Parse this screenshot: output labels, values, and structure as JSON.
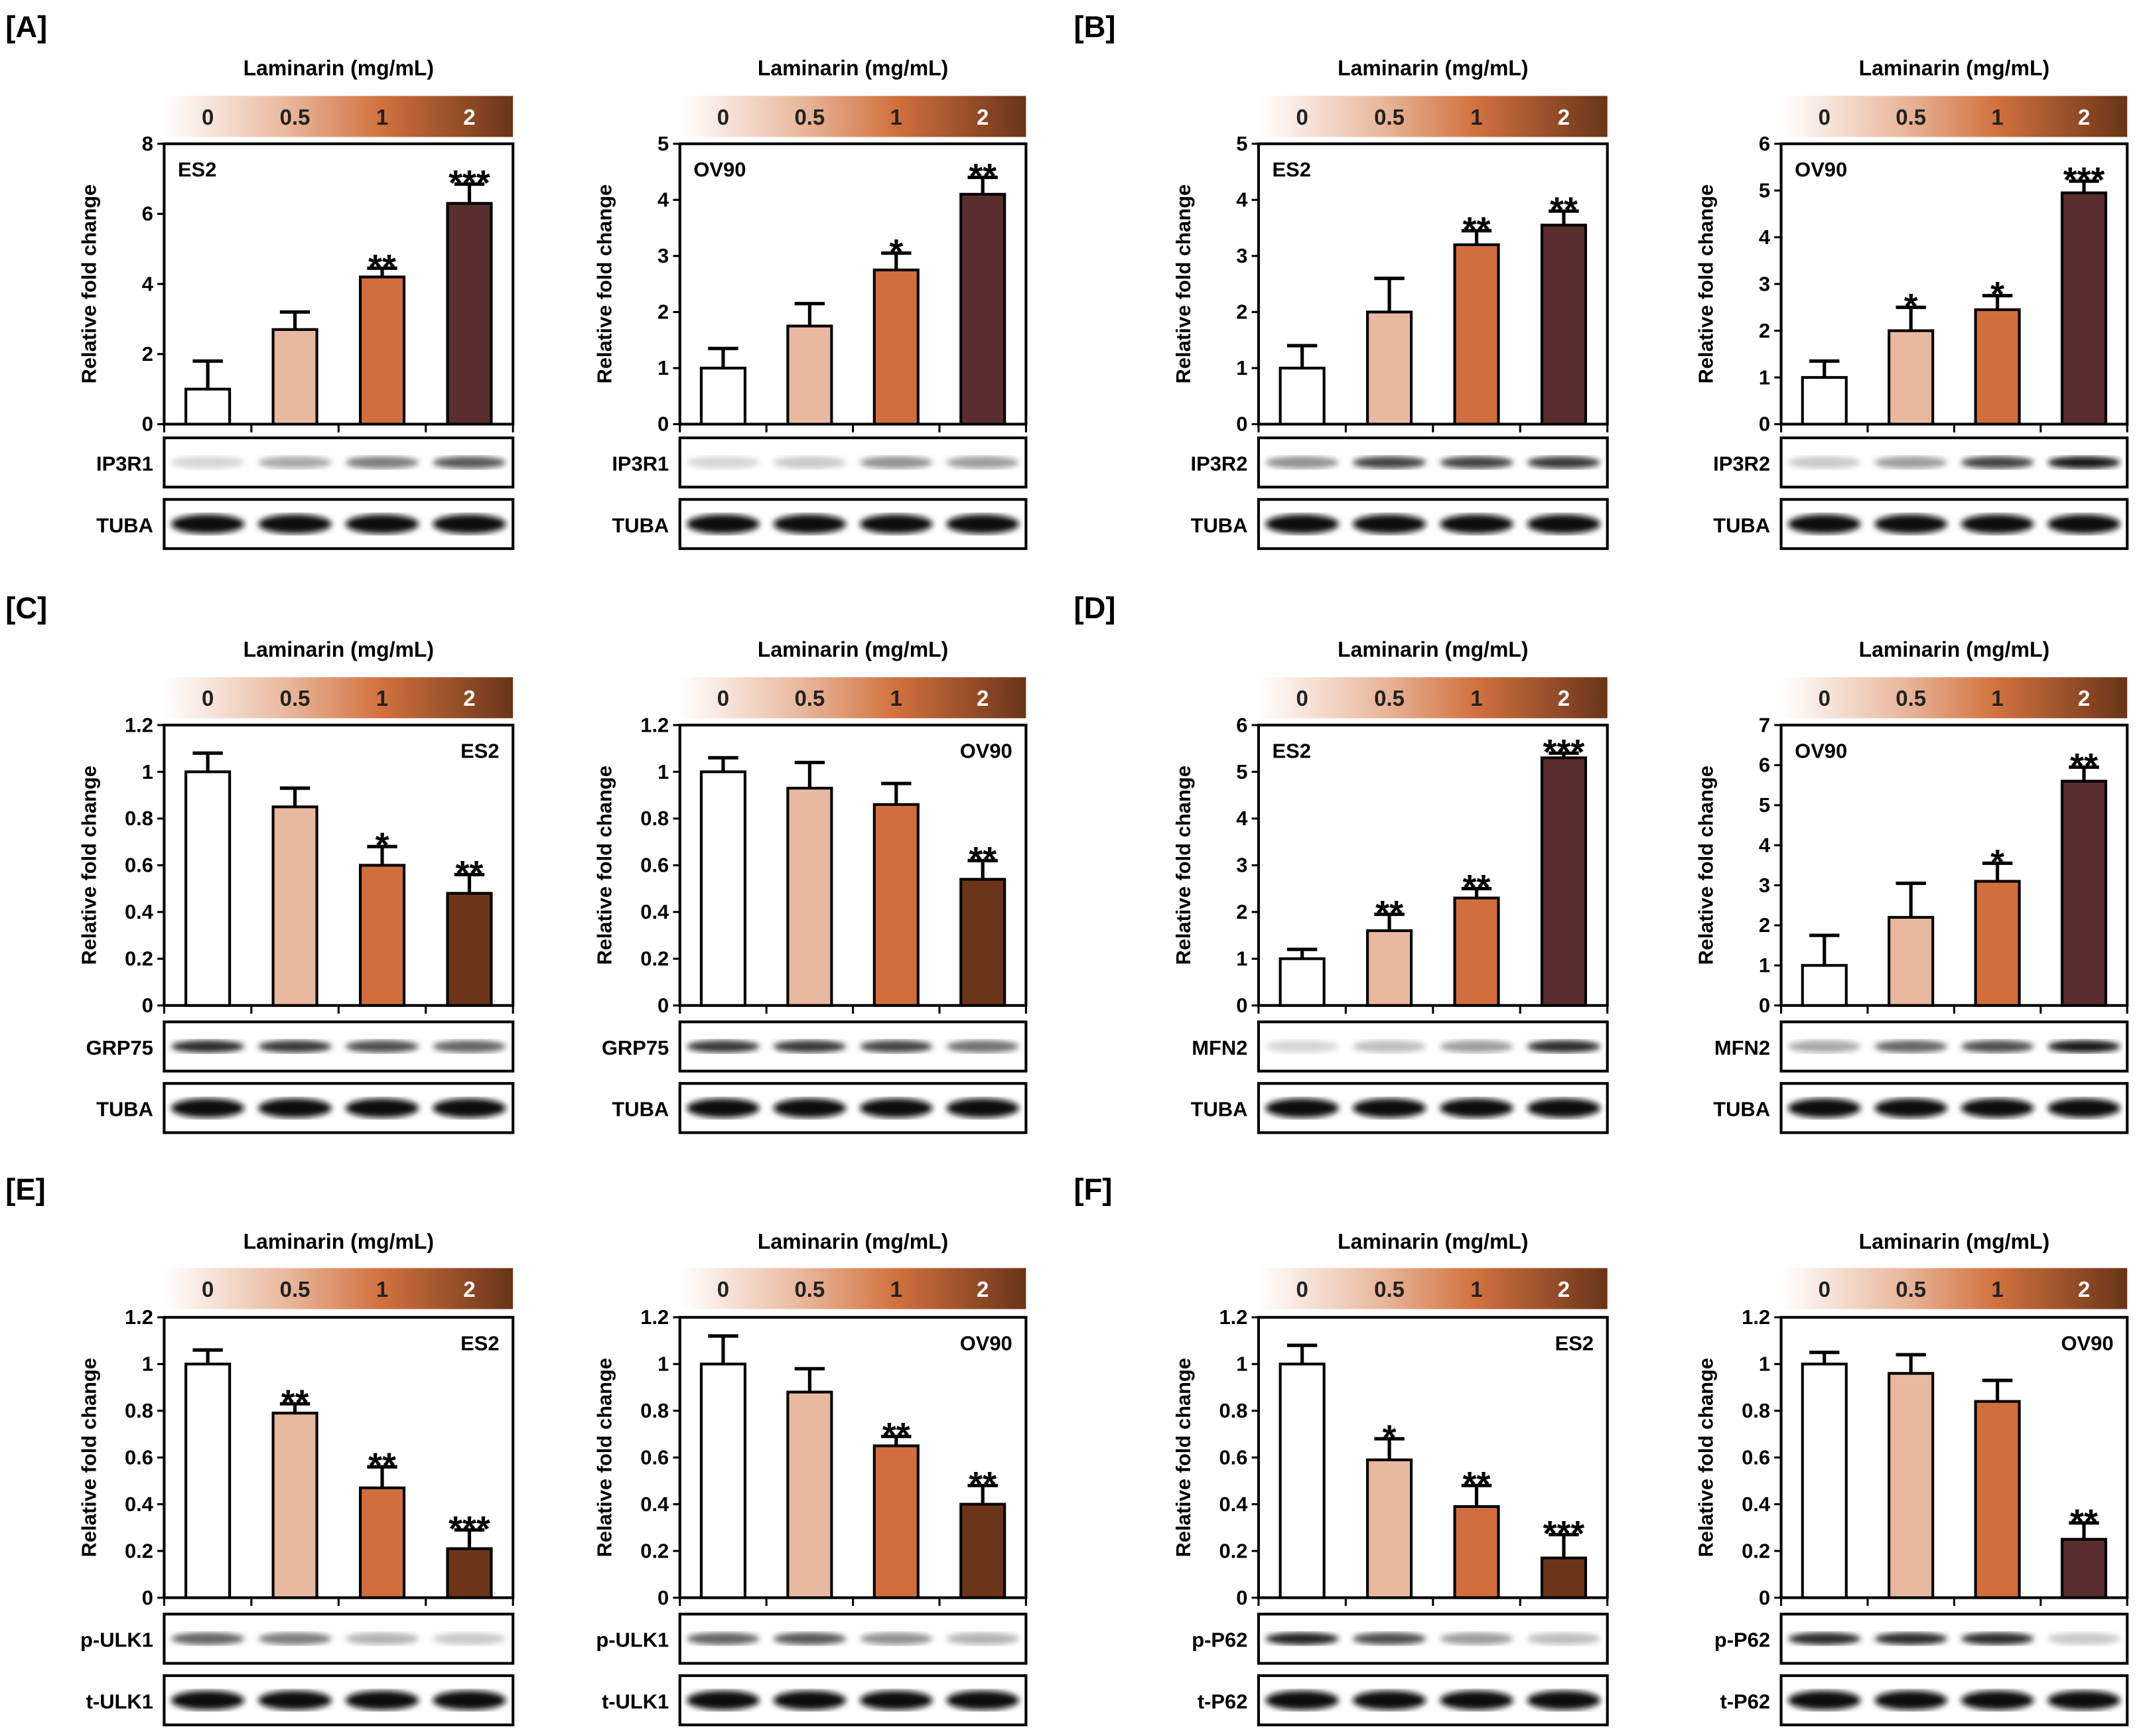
{
  "panel_labels": [
    "[A]",
    "[B]",
    "[C]",
    "[D]",
    "[E]",
    "[F]"
  ],
  "colors": {
    "c0": "#ffffff",
    "c05": "#e8b9a0",
    "c1": "#d06f3d",
    "dark_maroon": "#5a2e2e",
    "dark_brown": "#6c3519"
  },
  "chart_data": [
    {
      "type": "bar",
      "panel": "[A]",
      "title": "Laminarin (mg/mL)",
      "categories": [
        "0",
        "0.5",
        "1",
        "2"
      ],
      "cell": "ES2",
      "ylabel": "Relative fold change",
      "ylim": [
        0,
        8
      ],
      "yticks": [
        "0",
        "2",
        "4",
        "6",
        "8"
      ],
      "values": [
        1,
        2.7,
        4.2,
        6.3
      ],
      "errors": [
        0.8,
        0.5,
        0.25,
        0.55
      ],
      "stars": [
        "",
        "",
        "**",
        "***"
      ],
      "dark": "dark_maroon",
      "label_pos": "top-left",
      "blots": [
        {
          "name": "IP3R1",
          "intensity": [
            0.1,
            0.3,
            0.5,
            0.65
          ]
        },
        {
          "name": "TUBA",
          "intensity": [
            1,
            1,
            1,
            1
          ]
        }
      ]
    },
    {
      "type": "bar",
      "panel": "[A]",
      "title": "Laminarin (mg/mL)",
      "categories": [
        "0",
        "0.5",
        "1",
        "2"
      ],
      "cell": "OV90",
      "ylabel": "Relative fold change",
      "ylim": [
        0,
        5
      ],
      "yticks": [
        "0",
        "1",
        "2",
        "3",
        "4",
        "5"
      ],
      "values": [
        1,
        1.75,
        2.75,
        4.1
      ],
      "errors": [
        0.35,
        0.4,
        0.3,
        0.3
      ],
      "stars": [
        "",
        "",
        "*",
        "**"
      ],
      "dark": "dark_maroon",
      "label_pos": "top-left",
      "blots": [
        {
          "name": "IP3R1",
          "intensity": [
            0.1,
            0.15,
            0.4,
            0.35
          ]
        },
        {
          "name": "TUBA",
          "intensity": [
            1,
            1,
            1,
            1
          ]
        }
      ]
    },
    {
      "type": "bar",
      "panel": "[B]",
      "title": "Laminarin (mg/mL)",
      "categories": [
        "0",
        "0.5",
        "1",
        "2"
      ],
      "cell": "ES2",
      "ylabel": "Relative fold change",
      "ylim": [
        0,
        5
      ],
      "yticks": [
        "0",
        "1",
        "2",
        "3",
        "4",
        "5"
      ],
      "values": [
        1,
        2,
        3.2,
        3.55
      ],
      "errors": [
        0.4,
        0.6,
        0.25,
        0.25
      ],
      "stars": [
        "",
        "",
        "**",
        "**"
      ],
      "dark": "dark_maroon",
      "label_pos": "top-left",
      "blots": [
        {
          "name": "IP3R2",
          "intensity": [
            0.4,
            0.75,
            0.75,
            0.8
          ]
        },
        {
          "name": "TUBA",
          "intensity": [
            1,
            1,
            1,
            1
          ]
        }
      ]
    },
    {
      "type": "bar",
      "panel": "[B]",
      "title": "Laminarin (mg/mL)",
      "categories": [
        "0",
        "0.5",
        "1",
        "2"
      ],
      "cell": "OV90",
      "ylabel": "Relative fold change",
      "ylim": [
        0,
        6
      ],
      "yticks": [
        "0",
        "1",
        "2",
        "3",
        "4",
        "5",
        "6"
      ],
      "values": [
        1,
        2,
        2.45,
        4.95
      ],
      "errors": [
        0.35,
        0.5,
        0.3,
        0.25
      ],
      "stars": [
        "",
        "*",
        "*",
        "***"
      ],
      "dark": "dark_maroon",
      "label_pos": "top-left",
      "blots": [
        {
          "name": "IP3R2",
          "intensity": [
            0.15,
            0.35,
            0.75,
            0.95
          ]
        },
        {
          "name": "TUBA",
          "intensity": [
            1,
            1,
            1,
            1
          ]
        }
      ]
    },
    {
      "type": "bar",
      "panel": "[C]",
      "title": "Laminarin (mg/mL)",
      "categories": [
        "0",
        "0.5",
        "1",
        "2"
      ],
      "cell": "ES2",
      "ylabel": "Relative fold change",
      "ylim": [
        0,
        1.2
      ],
      "yticks": [
        "0",
        "0.2",
        "0.4",
        "0.6",
        "0.8",
        "1",
        "1.2"
      ],
      "values": [
        1,
        0.85,
        0.6,
        0.48
      ],
      "errors": [
        0.08,
        0.08,
        0.08,
        0.08
      ],
      "stars": [
        "",
        "",
        "*",
        "**"
      ],
      "dark": "dark_brown",
      "label_pos": "top-right",
      "blots": [
        {
          "name": "GRP75",
          "intensity": [
            0.85,
            0.8,
            0.7,
            0.6
          ]
        },
        {
          "name": "TUBA",
          "intensity": [
            1,
            1,
            1,
            1
          ]
        }
      ]
    },
    {
      "type": "bar",
      "panel": "[C]",
      "title": "Laminarin (mg/mL)",
      "categories": [
        "0",
        "0.5",
        "1",
        "2"
      ],
      "cell": "OV90",
      "ylabel": "Relative fold change",
      "ylim": [
        0,
        1.2
      ],
      "yticks": [
        "0",
        "0.2",
        "0.4",
        "0.6",
        "0.8",
        "1",
        "1.2"
      ],
      "values": [
        1,
        0.93,
        0.86,
        0.54
      ],
      "errors": [
        0.06,
        0.11,
        0.09,
        0.08
      ],
      "stars": [
        "",
        "",
        "",
        "**"
      ],
      "dark": "dark_brown",
      "label_pos": "top-right",
      "blots": [
        {
          "name": "GRP75",
          "intensity": [
            0.8,
            0.8,
            0.75,
            0.55
          ]
        },
        {
          "name": "TUBA",
          "intensity": [
            1,
            1,
            1,
            1
          ]
        }
      ]
    },
    {
      "type": "bar",
      "panel": "[D]",
      "title": "Laminarin (mg/mL)",
      "categories": [
        "0",
        "0.5",
        "1",
        "2"
      ],
      "cell": "ES2",
      "ylabel": "Relative fold change",
      "ylim": [
        0,
        6
      ],
      "yticks": [
        "0",
        "1",
        "2",
        "3",
        "4",
        "5",
        "6"
      ],
      "values": [
        1,
        1.6,
        2.3,
        5.3
      ],
      "errors": [
        0.2,
        0.35,
        0.2,
        0.1
      ],
      "stars": [
        "",
        "**",
        "**",
        "***"
      ],
      "dark": "dark_maroon",
      "label_pos": "top-left",
      "blots": [
        {
          "name": "MFN2",
          "intensity": [
            0.1,
            0.2,
            0.35,
            0.85
          ]
        },
        {
          "name": "TUBA",
          "intensity": [
            1,
            1,
            1,
            1
          ]
        }
      ]
    },
    {
      "type": "bar",
      "panel": "[D]",
      "title": "Laminarin (mg/mL)",
      "categories": [
        "0",
        "0.5",
        "1",
        "2"
      ],
      "cell": "OV90",
      "ylabel": "Relative fold change",
      "ylim": [
        0,
        7
      ],
      "yticks": [
        "0",
        "1",
        "2",
        "3",
        "4",
        "5",
        "6",
        "7"
      ],
      "values": [
        1,
        2.2,
        3.1,
        5.6
      ],
      "errors": [
        0.75,
        0.85,
        0.45,
        0.35
      ],
      "stars": [
        "",
        "",
        "*",
        "**"
      ],
      "dark": "dark_maroon",
      "label_pos": "top-left",
      "blots": [
        {
          "name": "MFN2",
          "intensity": [
            0.3,
            0.6,
            0.7,
            0.95
          ]
        },
        {
          "name": "TUBA",
          "intensity": [
            1,
            1,
            1,
            1
          ]
        }
      ]
    },
    {
      "type": "bar",
      "panel": "[E]",
      "title": "Laminarin (mg/mL)",
      "categories": [
        "0",
        "0.5",
        "1",
        "2"
      ],
      "cell": "ES2",
      "ylabel": "Relative fold change",
      "ylim": [
        0,
        1.2
      ],
      "yticks": [
        "0",
        "0.2",
        "0.4",
        "0.6",
        "0.8",
        "1",
        "1.2"
      ],
      "values": [
        1,
        0.79,
        0.47,
        0.21
      ],
      "errors": [
        0.06,
        0.04,
        0.09,
        0.08
      ],
      "stars": [
        "",
        "**",
        "**",
        "***"
      ],
      "dark": "dark_brown",
      "label_pos": "top-right",
      "blots": [
        {
          "name": "p-ULK1",
          "intensity": [
            0.6,
            0.5,
            0.25,
            0.15
          ]
        },
        {
          "name": "t-ULK1",
          "intensity": [
            1,
            1,
            1,
            1
          ]
        }
      ]
    },
    {
      "type": "bar",
      "panel": "[E]",
      "title": "Laminarin (mg/mL)",
      "categories": [
        "0",
        "0.5",
        "1",
        "2"
      ],
      "cell": "OV90",
      "ylabel": "Relative fold change",
      "ylim": [
        0,
        1.2
      ],
      "yticks": [
        "0",
        "0.2",
        "0.4",
        "0.6",
        "0.8",
        "1",
        "1.2"
      ],
      "values": [
        1,
        0.88,
        0.65,
        0.4
      ],
      "errors": [
        0.12,
        0.1,
        0.04,
        0.08
      ],
      "stars": [
        "",
        "",
        "**",
        "**"
      ],
      "dark": "dark_brown",
      "label_pos": "top-right",
      "blots": [
        {
          "name": "p-ULK1",
          "intensity": [
            0.6,
            0.65,
            0.4,
            0.25
          ]
        },
        {
          "name": "t-ULK1",
          "intensity": [
            1,
            1,
            1,
            1
          ]
        }
      ]
    },
    {
      "type": "bar",
      "panel": "[F]",
      "title": "Laminarin (mg/mL)",
      "categories": [
        "0",
        "0.5",
        "1",
        "2"
      ],
      "cell": "ES2",
      "ylabel": "Relative fold change",
      "ylim": [
        0,
        1.2
      ],
      "yticks": [
        "0",
        "0.2",
        "0.4",
        "0.6",
        "0.8",
        "1",
        "1.2"
      ],
      "values": [
        1,
        0.59,
        0.39,
        0.17
      ],
      "errors": [
        0.08,
        0.09,
        0.09,
        0.1
      ],
      "stars": [
        "",
        "*",
        "**",
        "***"
      ],
      "dark": "dark_brown",
      "label_pos": "top-right",
      "blots": [
        {
          "name": "p-P62",
          "intensity": [
            0.9,
            0.7,
            0.35,
            0.2
          ]
        },
        {
          "name": "t-P62",
          "intensity": [
            1,
            1,
            1,
            1
          ]
        }
      ]
    },
    {
      "type": "bar",
      "panel": "[F]",
      "title": "Laminarin (mg/mL)",
      "categories": [
        "0",
        "0.5",
        "1",
        "2"
      ],
      "cell": "OV90",
      "ylabel": "Relative fold change",
      "ylim": [
        0,
        1.2
      ],
      "yticks": [
        "0",
        "0.2",
        "0.4",
        "0.6",
        "0.8",
        "1",
        "1.2"
      ],
      "values": [
        1,
        0.96,
        0.84,
        0.25
      ],
      "errors": [
        0.05,
        0.08,
        0.09,
        0.07
      ],
      "stars": [
        "",
        "",
        "",
        "**"
      ],
      "dark": "dark_maroon",
      "label_pos": "top-right",
      "blots": [
        {
          "name": "p-P62",
          "intensity": [
            0.85,
            0.85,
            0.85,
            0.15
          ]
        },
        {
          "name": "t-P62",
          "intensity": [
            1,
            1,
            1,
            1
          ]
        }
      ]
    }
  ]
}
